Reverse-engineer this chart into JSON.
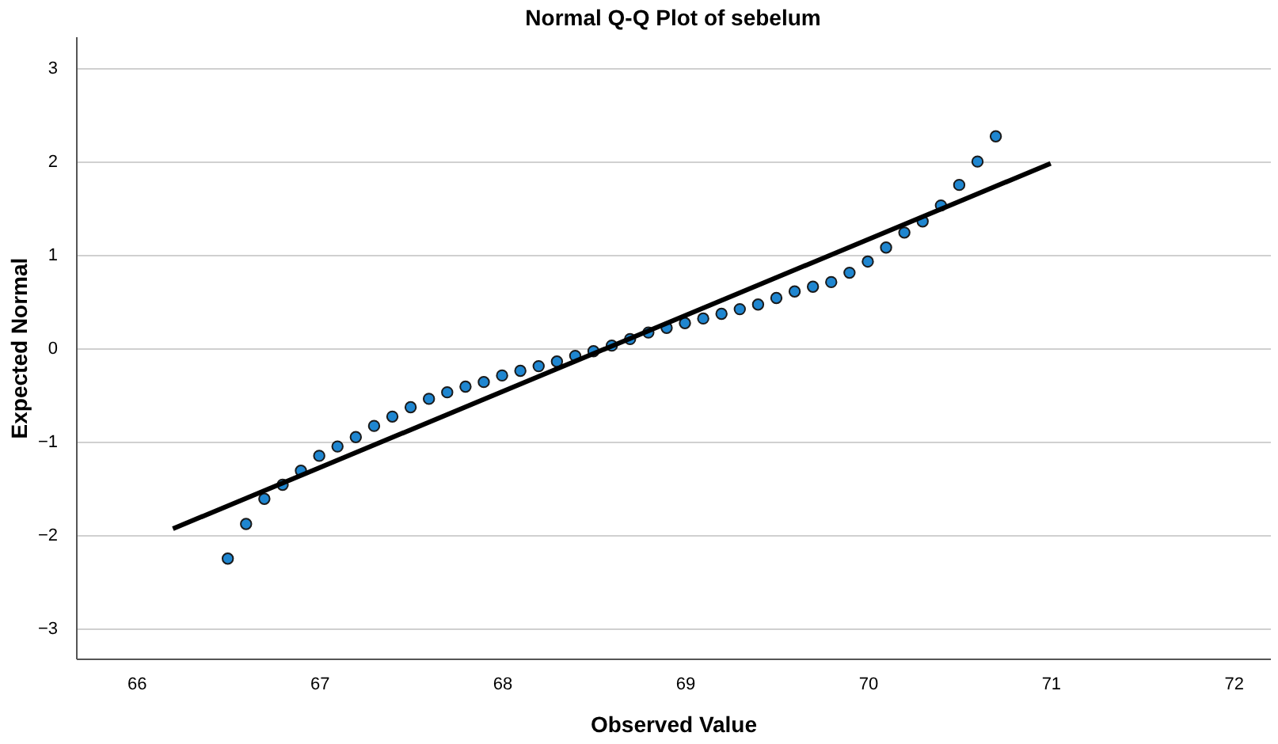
{
  "chart_data": {
    "type": "scatter",
    "title": "Normal Q-Q Plot of sebelum",
    "xlabel": "Observed Value",
    "ylabel": "Expected Normal",
    "xlim": [
      65.67,
      72.2
    ],
    "ylim": [
      -3.32,
      3.34
    ],
    "xticks": [
      66,
      67,
      68,
      69,
      70,
      71,
      72
    ],
    "yticks": [
      -3,
      -2,
      -1,
      0,
      1,
      2,
      3
    ],
    "grid": "y",
    "series": [
      {
        "marker": "circle",
        "color": "#1f86d0",
        "x": [
          66.5,
          66.6,
          66.7,
          66.8,
          66.9,
          67.0,
          67.1,
          67.2,
          67.3,
          67.4,
          67.5,
          67.6,
          67.7,
          67.8,
          67.9,
          68.0,
          68.1,
          68.2,
          68.3,
          68.4,
          68.5,
          68.6,
          68.7,
          68.8,
          68.9,
          69.0,
          69.1,
          69.2,
          69.3,
          69.4,
          69.5,
          69.6,
          69.7,
          69.8,
          69.9,
          70.0,
          70.1,
          70.2,
          70.3,
          70.4,
          70.5,
          70.6,
          70.7
        ],
        "values": [
          -2.25,
          -1.88,
          -1.61,
          -1.46,
          -1.31,
          -1.15,
          -1.05,
          -0.95,
          -0.83,
          -0.73,
          -0.63,
          -0.54,
          -0.47,
          -0.41,
          -0.36,
          -0.29,
          -0.24,
          -0.19,
          -0.14,
          -0.08,
          -0.03,
          0.03,
          0.1,
          0.17,
          0.22,
          0.27,
          0.32,
          0.37,
          0.42,
          0.47,
          0.54,
          0.61,
          0.66,
          0.71,
          0.81,
          0.93,
          1.08,
          1.24,
          1.36,
          1.53,
          1.75,
          2.0,
          2.27
        ]
      },
      {
        "type": "line",
        "color": "#000000",
        "line_style": "solid",
        "x": [
          66.2,
          71.0
        ],
        "values": [
          -1.93,
          1.98
        ]
      }
    ]
  }
}
